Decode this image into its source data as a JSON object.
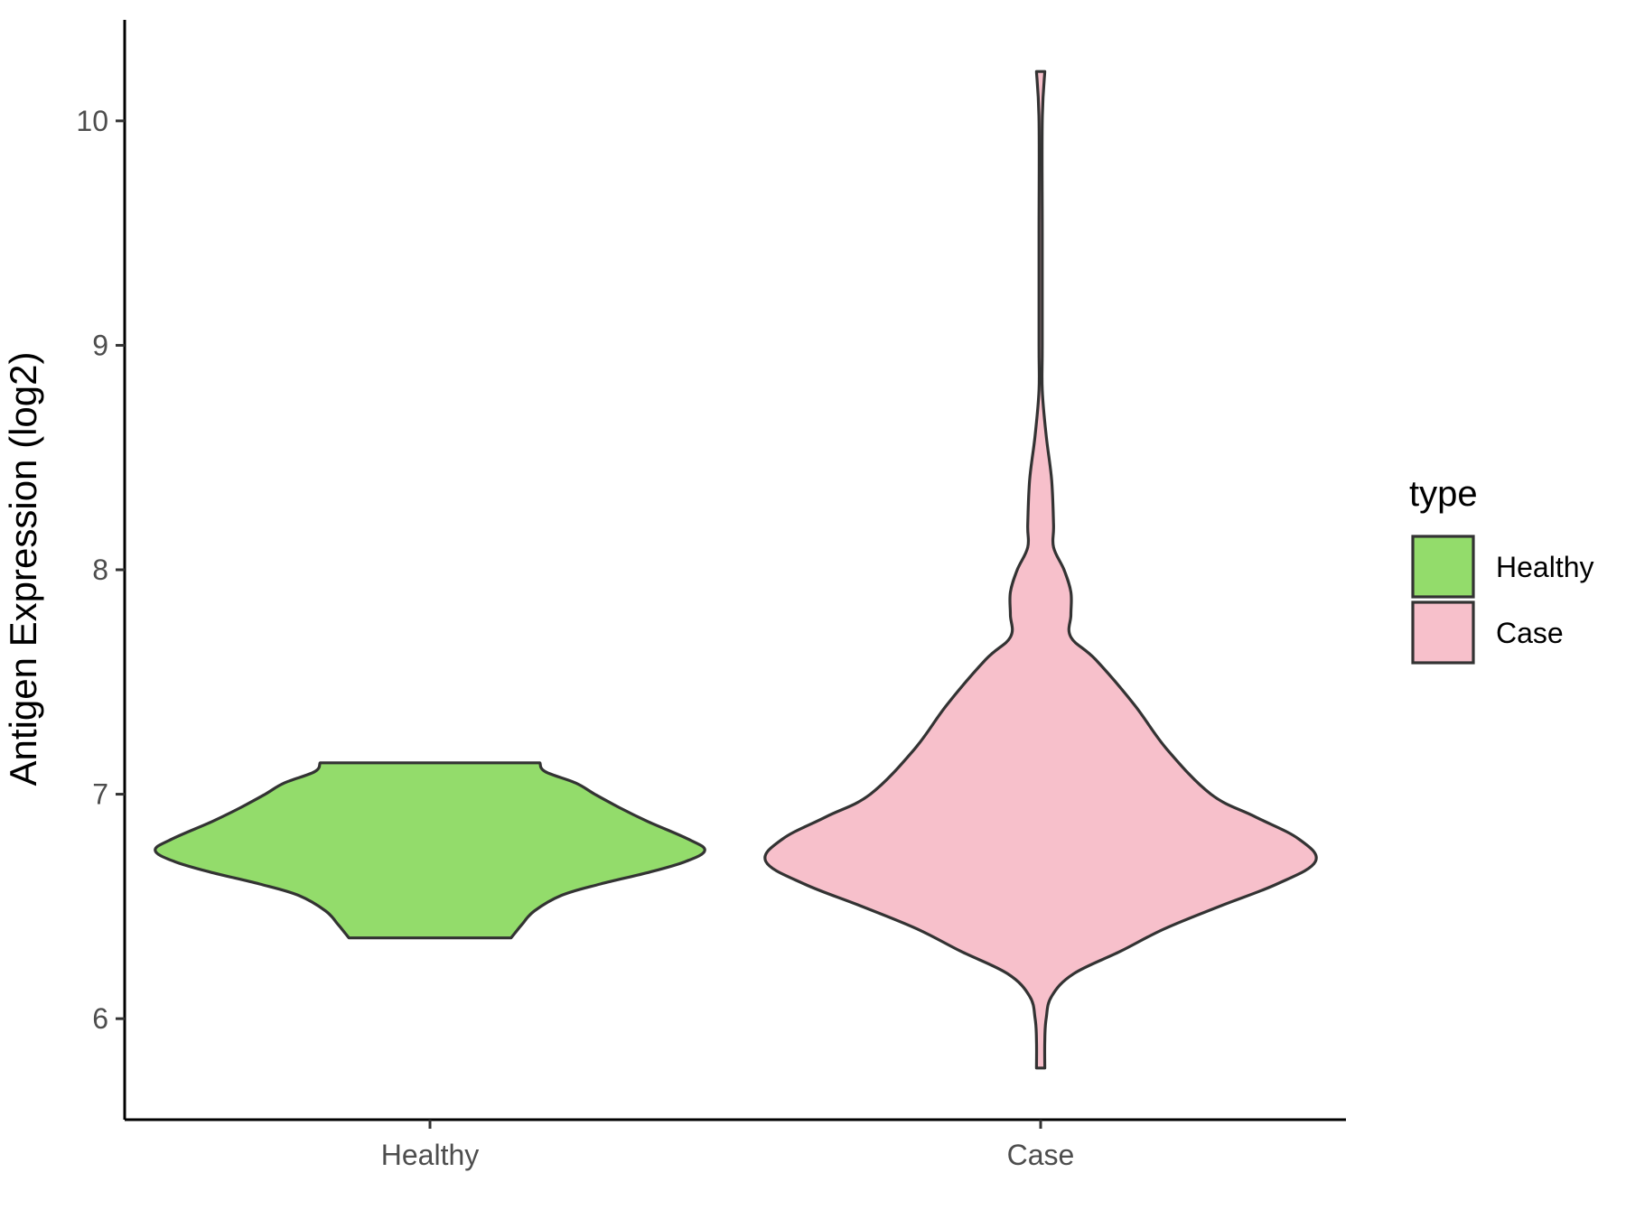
{
  "chart_data": {
    "type": "violin",
    "title": "",
    "xlabel": "",
    "ylabel": "Antigen Expression (log2)",
    "ylim": [
      5.55,
      10.45
    ],
    "yticks": [
      6,
      7,
      8,
      9,
      10
    ],
    "categories": [
      "Healthy",
      "Case"
    ],
    "grid": false,
    "legend": {
      "title": "type",
      "position": "right",
      "entries": [
        {
          "label": "Healthy",
          "color": "#93dc6b"
        },
        {
          "label": "Case",
          "color": "#f7c0cb"
        }
      ]
    },
    "series": [
      {
        "name": "Healthy",
        "color": "#93dc6b",
        "min": 6.36,
        "max": 7.14,
        "density": [
          [
            6.36,
            0.295
          ],
          [
            6.38,
            0.308
          ],
          [
            6.42,
            0.335
          ],
          [
            6.48,
            0.38
          ],
          [
            6.55,
            0.48
          ],
          [
            6.6,
            0.62
          ],
          [
            6.65,
            0.79
          ],
          [
            6.7,
            0.93
          ],
          [
            6.75,
            1.0
          ],
          [
            6.8,
            0.94
          ],
          [
            6.88,
            0.79
          ],
          [
            6.94,
            0.69
          ],
          [
            7.0,
            0.6
          ],
          [
            7.05,
            0.53
          ],
          [
            7.1,
            0.42
          ],
          [
            7.14,
            0.4
          ]
        ]
      },
      {
        "name": "Case",
        "color": "#f7c0cb",
        "min": 5.78,
        "max": 10.22,
        "density": [
          [
            5.78,
            0.015
          ],
          [
            5.9,
            0.015
          ],
          [
            6.0,
            0.02
          ],
          [
            6.1,
            0.04
          ],
          [
            6.2,
            0.12
          ],
          [
            6.3,
            0.29
          ],
          [
            6.4,
            0.45
          ],
          [
            6.5,
            0.65
          ],
          [
            6.6,
            0.86
          ],
          [
            6.7,
            1.0
          ],
          [
            6.8,
            0.94
          ],
          [
            6.9,
            0.78
          ],
          [
            7.0,
            0.62
          ],
          [
            7.2,
            0.46
          ],
          [
            7.4,
            0.34
          ],
          [
            7.6,
            0.2
          ],
          [
            7.7,
            0.11
          ],
          [
            7.8,
            0.11
          ],
          [
            7.9,
            0.11
          ],
          [
            8.0,
            0.085
          ],
          [
            8.1,
            0.047
          ],
          [
            8.2,
            0.047
          ],
          [
            8.4,
            0.04
          ],
          [
            8.6,
            0.02
          ],
          [
            8.8,
            0.006
          ],
          [
            9.0,
            0.006
          ],
          [
            9.5,
            0.006
          ],
          [
            10.0,
            0.006
          ],
          [
            10.22,
            0.015
          ]
        ]
      }
    ]
  }
}
